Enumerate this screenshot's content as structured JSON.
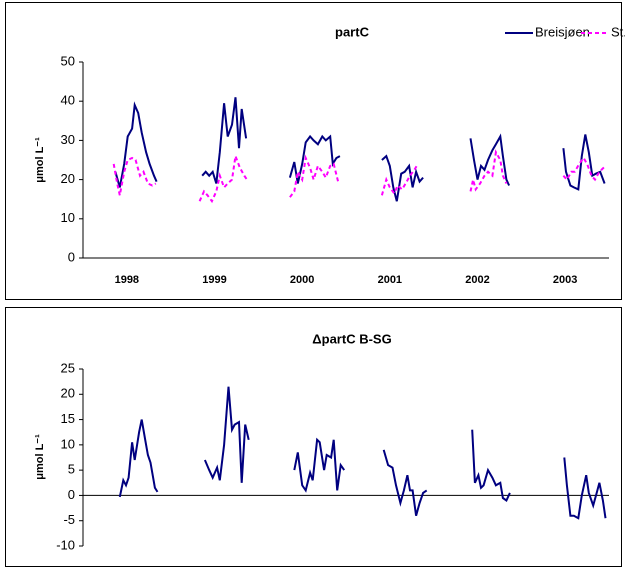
{
  "chart_data": [
    {
      "type": "line",
      "title": "partC",
      "ylabel": "μmol L⁻¹",
      "xlim": [
        1998,
        2004
      ],
      "xticks": [
        {
          "value": 1998.5,
          "label": "1998"
        },
        {
          "value": 1999.5,
          "label": "1999"
        },
        {
          "value": 2000.5,
          "label": "2000"
        },
        {
          "value": 2001.5,
          "label": "2001"
        },
        {
          "value": 2002.5,
          "label": "2002"
        },
        {
          "value": 2003.5,
          "label": "2003"
        }
      ],
      "ylim": [
        0,
        50
      ],
      "yticks": [
        0,
        10,
        20,
        30,
        40,
        50
      ],
      "legend": "top-right",
      "series": [
        {
          "name": "Breisjøen",
          "color": "#000080",
          "dash": false,
          "x": [
            1998.37,
            1998.42,
            1998.47,
            1998.51,
            1998.56,
            1998.59,
            1998.63,
            1998.67,
            1998.72,
            1998.76,
            1998.81,
            1998.84,
            null,
            1999.36,
            1999.4,
            1999.44,
            1999.48,
            1999.52,
            1999.56,
            1999.61,
            1999.65,
            1999.7,
            1999.74,
            1999.78,
            1999.81,
            1999.86,
            null,
            2000.36,
            2000.41,
            2000.45,
            2000.5,
            2000.54,
            2000.59,
            2000.63,
            2000.68,
            2000.73,
            2000.77,
            2000.82,
            2000.85,
            2000.89,
            2000.93,
            null,
            2001.41,
            2001.46,
            2001.5,
            2001.54,
            2001.58,
            2001.63,
            2001.67,
            2001.72,
            2001.76,
            2001.8,
            2001.84,
            2001.88,
            null,
            2002.42,
            2002.46,
            2002.5,
            2002.54,
            2002.58,
            2002.62,
            2002.67,
            2002.71,
            2002.76,
            2002.79,
            2002.83,
            2002.86,
            null,
            2003.48,
            2003.51,
            2003.56,
            2003.6,
            2003.65,
            2003.69,
            2003.73,
            2003.77,
            2003.81,
            2003.85,
            2003.9,
            2003.95
          ],
          "values": [
            22,
            18,
            24,
            31,
            33,
            39,
            37,
            32,
            27,
            24,
            21,
            19.5,
            null,
            21,
            22,
            21,
            22,
            19,
            27,
            39.5,
            31,
            34,
            41,
            28,
            38,
            30.5,
            null,
            20.5,
            24.5,
            19,
            24,
            29.5,
            31,
            30,
            29,
            31,
            30,
            31,
            24,
            25.5,
            26,
            null,
            25,
            26,
            23.5,
            18,
            14.5,
            21.5,
            22,
            23.5,
            18,
            22,
            19.5,
            20.5,
            null,
            30.5,
            25,
            20,
            23.5,
            22.5,
            25,
            27.5,
            29,
            31,
            26,
            20,
            18.5,
            null,
            28,
            22,
            18.5,
            18,
            17.5,
            26,
            31.5,
            27,
            21,
            21.5,
            22,
            19
          ]
        },
        {
          "name": "St.Gryta",
          "color": "#ff00ff",
          "dash": true,
          "x": [
            1998.35,
            1998.39,
            1998.42,
            1998.47,
            1998.51,
            1998.56,
            1998.6,
            1998.65,
            1998.69,
            1998.74,
            1998.79,
            1998.83,
            null,
            1999.33,
            1999.38,
            1999.42,
            1999.47,
            1999.52,
            1999.56,
            1999.61,
            1999.65,
            1999.7,
            1999.74,
            1999.79,
            1999.84,
            1999.87,
            null,
            2000.36,
            2000.41,
            2000.45,
            2000.5,
            2000.54,
            2000.59,
            2000.63,
            2000.68,
            2000.73,
            2000.77,
            2000.82,
            2000.86,
            2000.91,
            null,
            2001.41,
            2001.46,
            2001.5,
            2001.55,
            2001.59,
            2001.64,
            2001.68,
            2001.73,
            2001.78,
            2001.82,
            null,
            2002.42,
            2002.45,
            2002.48,
            2002.53,
            2002.58,
            2002.62,
            2002.67,
            2002.71,
            2002.76,
            2002.79,
            2002.83,
            null,
            2003.48,
            2003.52,
            2003.57,
            2003.61,
            2003.66,
            2003.71,
            2003.75,
            2003.8,
            2003.84,
            2003.89,
            2003.96
          ],
          "values": [
            24,
            19,
            16,
            22,
            25,
            25.5,
            25,
            21,
            22,
            19,
            18.5,
            19,
            null,
            14.5,
            17,
            16,
            14.5,
            17,
            21,
            18,
            19,
            20,
            26,
            23,
            21,
            20,
            null,
            15.5,
            17,
            22,
            20,
            25.5,
            23,
            20,
            23.5,
            22,
            20.5,
            23.5,
            24,
            19.5,
            null,
            16,
            20,
            18,
            16.5,
            18.5,
            17.5,
            19,
            21,
            22.5,
            24,
            null,
            17,
            20,
            17.5,
            19,
            21,
            22,
            21,
            27,
            25,
            21,
            19,
            null,
            21,
            20,
            22,
            22,
            24,
            25.5,
            24,
            21,
            20,
            22,
            23.5
          ]
        }
      ]
    },
    {
      "type": "line",
      "title": "ΔpartC B-SG",
      "ylabel": "μmol L⁻¹",
      "xlim": [
        1998,
        2004
      ],
      "ylim": [
        -10,
        25
      ],
      "yticks": [
        -10,
        -5,
        0,
        5,
        10,
        15,
        20,
        25
      ],
      "series": [
        {
          "color": "#000080",
          "dash": false,
          "x": [
            1998.42,
            1998.46,
            1998.49,
            1998.52,
            1998.56,
            1998.59,
            1998.64,
            1998.67,
            1998.71,
            1998.74,
            1998.77,
            1998.82,
            1998.85,
            null,
            1999.39,
            1999.44,
            1999.48,
            1999.53,
            1999.56,
            1999.61,
            1999.66,
            1999.7,
            1999.73,
            1999.78,
            1999.81,
            1999.85,
            1999.89,
            null,
            2000.41,
            2000.45,
            2000.5,
            2000.54,
            2000.59,
            2000.62,
            2000.67,
            2000.7,
            2000.75,
            2000.78,
            2000.83,
            2000.86,
            2000.9,
            2000.94,
            2000.98,
            null,
            2001.43,
            2001.48,
            2001.53,
            2001.57,
            2001.62,
            2001.66,
            2001.7,
            2001.73,
            2001.76,
            2001.8,
            2001.84,
            2001.88,
            2001.92,
            null,
            2002.44,
            2002.47,
            2002.51,
            2002.54,
            2002.57,
            2002.62,
            2002.67,
            2002.71,
            2002.76,
            2002.79,
            2002.83,
            2002.87,
            null,
            2003.49,
            2003.52,
            2003.56,
            2003.6,
            2003.65,
            2003.69,
            2003.74,
            2003.77,
            2003.82,
            2003.86,
            2003.89,
            2003.93,
            2003.96
          ],
          "values": [
            -0.3,
            3,
            2,
            3.5,
            10.5,
            7,
            12.5,
            15,
            11,
            8,
            6.5,
            1.5,
            0.7,
            null,
            7,
            5,
            3.5,
            5.5,
            3,
            10,
            21.5,
            13,
            14,
            14.5,
            2.5,
            14,
            11,
            null,
            5,
            8.5,
            2,
            1,
            4.5,
            3,
            11,
            10.5,
            5,
            8,
            7.5,
            11,
            1,
            6,
            5,
            null,
            9,
            6,
            5.5,
            2,
            -1.5,
            1,
            4,
            1,
            1,
            -4,
            -1.5,
            0.5,
            1,
            null,
            13,
            2.5,
            4,
            1.5,
            2,
            5,
            3.5,
            2,
            2.5,
            -0.5,
            -1,
            0.5,
            null,
            7.5,
            2,
            -4,
            -4,
            -4.5,
            0,
            4,
            0.5,
            -2,
            0.5,
            2.5,
            -1,
            -4.5
          ]
        }
      ]
    }
  ]
}
